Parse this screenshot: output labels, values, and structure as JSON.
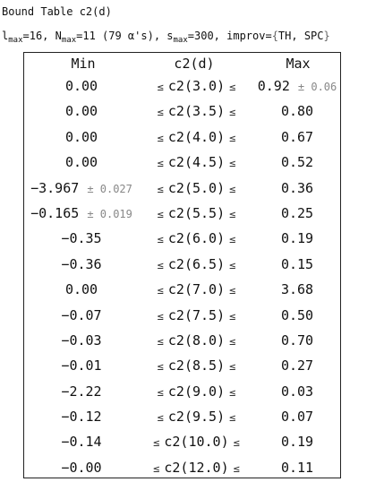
{
  "title": "Bound Table c2(d)",
  "params": {
    "l_base": "l",
    "l_sub": "max",
    "l_val": "=16,",
    "n_base": " N",
    "n_sub": "max",
    "n_val": "=11 (79 α's),",
    "s_base": " s",
    "s_sub": "max",
    "s_val": "=300,",
    "improv": " improv=",
    "improv_open": "{",
    "improv_val": "TH, SPC",
    "improv_close": "}"
  },
  "table": {
    "headers": {
      "min": "Min",
      "c2": "c2(d)",
      "max": "Max"
    },
    "le": "≤",
    "rows": [
      {
        "min": "0.00",
        "min_err": "",
        "c2": "c2(3.0)",
        "max": "0.92",
        "max_err": "± 0.06"
      },
      {
        "min": "0.00",
        "min_err": "",
        "c2": "c2(3.5)",
        "max": "0.80",
        "max_err": ""
      },
      {
        "min": "0.00",
        "min_err": "",
        "c2": "c2(4.0)",
        "max": "0.67",
        "max_err": ""
      },
      {
        "min": "0.00",
        "min_err": "",
        "c2": "c2(4.5)",
        "max": "0.52",
        "max_err": ""
      },
      {
        "min": "−3.967",
        "min_err": "± 0.027",
        "c2": "c2(5.0)",
        "max": "0.36",
        "max_err": ""
      },
      {
        "min": "−0.165",
        "min_err": "± 0.019",
        "c2": "c2(5.5)",
        "max": "0.25",
        "max_err": ""
      },
      {
        "min": "−0.35",
        "min_err": "",
        "c2": "c2(6.0)",
        "max": "0.19",
        "max_err": ""
      },
      {
        "min": "−0.36",
        "min_err": "",
        "c2": "c2(6.5)",
        "max": "0.15",
        "max_err": ""
      },
      {
        "min": "0.00",
        "min_err": "",
        "c2": "c2(7.0)",
        "max": "3.68",
        "max_err": ""
      },
      {
        "min": "−0.07",
        "min_err": "",
        "c2": "c2(7.5)",
        "max": "0.50",
        "max_err": ""
      },
      {
        "min": "−0.03",
        "min_err": "",
        "c2": "c2(8.0)",
        "max": "0.70",
        "max_err": ""
      },
      {
        "min": "−0.01",
        "min_err": "",
        "c2": "c2(8.5)",
        "max": "0.27",
        "max_err": ""
      },
      {
        "min": "−2.22",
        "min_err": "",
        "c2": "c2(9.0)",
        "max": "0.03",
        "max_err": ""
      },
      {
        "min": "−0.12",
        "min_err": "",
        "c2": "c2(9.5)",
        "max": "0.07",
        "max_err": ""
      },
      {
        "min": "−0.14",
        "min_err": "",
        "c2": "c2(10.0)",
        "max": "0.19",
        "max_err": ""
      },
      {
        "min": "−0.00",
        "min_err": "",
        "c2": "c2(12.0)",
        "max": "0.11",
        "max_err": ""
      }
    ]
  }
}
